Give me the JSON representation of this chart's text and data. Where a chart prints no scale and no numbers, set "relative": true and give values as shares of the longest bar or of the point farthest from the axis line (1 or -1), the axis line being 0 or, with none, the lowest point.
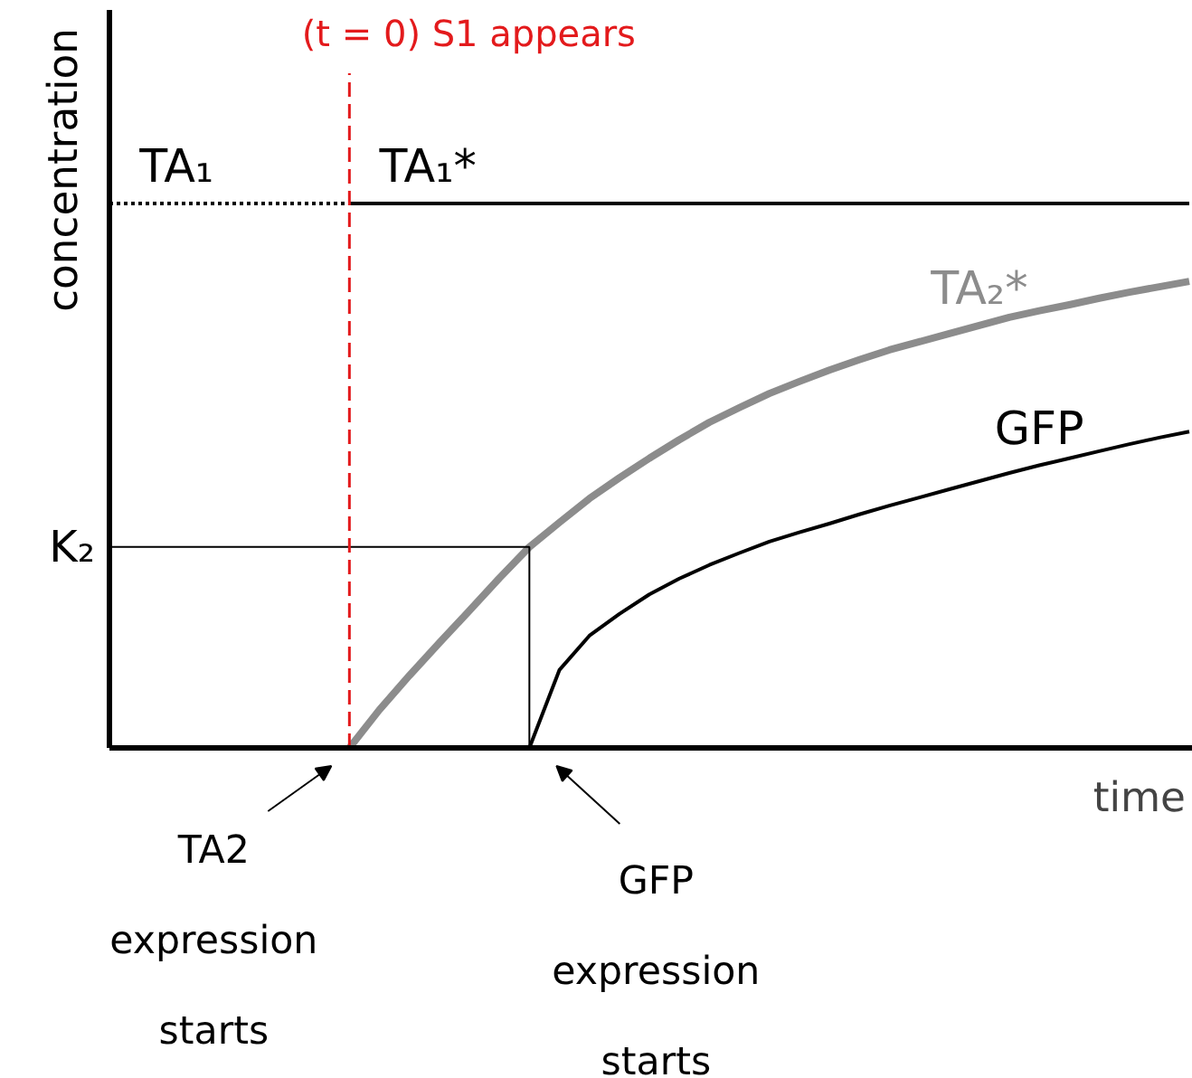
{
  "chart_data": {
    "type": "line",
    "relative": true,
    "xlabel": "time",
    "ylabel": "concentration",
    "legend": false,
    "grid": false,
    "tick_labels": false,
    "categories": [
      null,
      null,
      null,
      null,
      null,
      null,
      null,
      null,
      null,
      null,
      null,
      null,
      null,
      null,
      null,
      null,
      null,
      null,
      null,
      null,
      null,
      null,
      null,
      null,
      null,
      null,
      null,
      null,
      null,
      null,
      null,
      null,
      null,
      null,
      null,
      null,
      null
    ],
    "series": [
      {
        "name": "TA₁",
        "color": "#000000",
        "line_style": "dotted",
        "values": [
          1,
          1,
          1,
          1,
          1,
          1,
          1,
          1,
          1,
          null,
          null,
          null,
          null,
          null,
          null,
          null,
          null,
          null,
          null,
          null,
          null,
          null,
          null,
          null,
          null,
          null,
          null,
          null,
          null,
          null,
          null,
          null,
          null,
          null,
          null,
          null,
          null
        ]
      },
      {
        "name": "TA₁*",
        "color": "#000000",
        "line_style": "solid",
        "values": [
          null,
          null,
          null,
          null,
          null,
          null,
          null,
          null,
          1,
          1,
          1,
          1,
          1,
          1,
          1,
          1,
          1,
          1,
          1,
          1,
          1,
          1,
          1,
          1,
          1,
          1,
          1,
          1,
          1,
          1,
          1,
          1,
          1,
          1,
          1,
          1,
          1
        ]
      },
      {
        "name": "TA₂*",
        "color": "#8c8c8c",
        "line_style": "solid",
        "values": [
          null,
          null,
          null,
          null,
          null,
          null,
          null,
          null,
          0,
          0.07,
          0.133,
          0.193,
          0.252,
          0.312,
          0.369,
          0.414,
          0.458,
          0.496,
          0.532,
          0.566,
          0.598,
          0.625,
          0.651,
          0.673,
          0.694,
          0.713,
          0.731,
          0.746,
          0.761,
          0.776,
          0.791,
          0.803,
          0.814,
          0.826,
          0.837,
          0.847,
          0.857
        ]
      },
      {
        "name": "GFP",
        "color": "#000000",
        "line_style": "solid",
        "values": [
          null,
          null,
          null,
          null,
          null,
          null,
          null,
          null,
          null,
          null,
          null,
          null,
          null,
          null,
          0,
          0.143,
          0.206,
          0.246,
          0.282,
          0.311,
          0.336,
          0.358,
          0.379,
          0.396,
          0.412,
          0.429,
          0.445,
          0.46,
          0.475,
          0.49,
          0.505,
          0.519,
          0.532,
          0.545,
          0.558,
          0.57,
          0.581
        ]
      }
    ],
    "ref_lines": [
      {
        "axis": "y",
        "value": 0.369,
        "label": "K₂",
        "color": "#000000",
        "line_style": "solid"
      }
    ],
    "annotations": [
      "(t = 0) S1 appears",
      "TA2 expression starts",
      "GFP expression starts"
    ]
  }
}
